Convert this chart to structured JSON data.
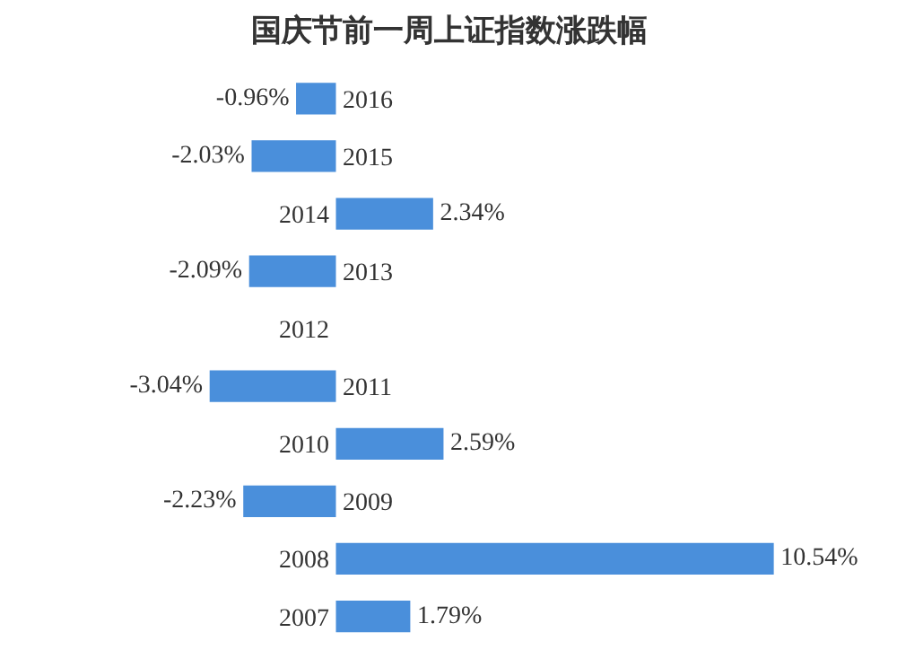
{
  "chart_data": {
    "type": "bar",
    "orientation": "horizontal",
    "title": "国庆节前一周上证指数涨跌幅",
    "categories": [
      "2016",
      "2015",
      "2014",
      "2013",
      "2012",
      "2011",
      "2010",
      "2009",
      "2008",
      "2007"
    ],
    "values": [
      -0.96,
      -2.03,
      2.34,
      -2.09,
      null,
      -3.04,
      2.59,
      -2.23,
      10.54,
      1.79
    ],
    "value_labels": [
      "-0.96%",
      "-2.03%",
      "2.34%",
      "-2.09%",
      null,
      "-3.04%",
      "2.59%",
      "-2.23%",
      "10.54%",
      "1.79%"
    ],
    "color": "#4a8fdb"
  }
}
